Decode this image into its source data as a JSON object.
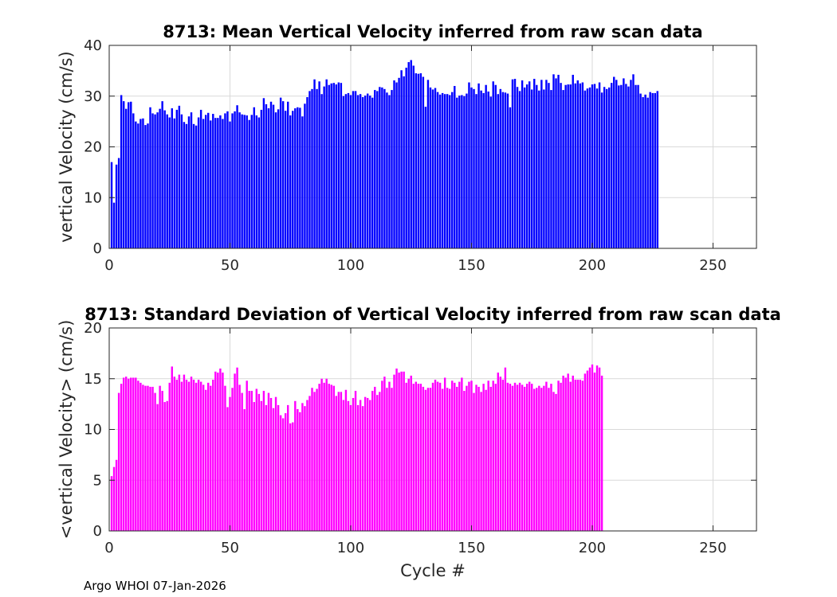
{
  "footer_text": "Argo WHOI 07-Jan-2026",
  "chart_data": [
    {
      "type": "bar",
      "title": "8713: Mean Vertical Velocity inferred from raw scan data",
      "xlabel": "",
      "ylabel": "vertical Velocity (cm/s)",
      "xlim": [
        0,
        268
      ],
      "ylim": [
        0,
        40
      ],
      "xticks": [
        0,
        50,
        100,
        150,
        200,
        250
      ],
      "yticks": [
        0,
        10,
        20,
        30,
        40
      ],
      "grid": true,
      "color": "#0000ff",
      "values": [
        17,
        9,
        16.5,
        17.8,
        30.2,
        29,
        27.5,
        28.8,
        28.9,
        26.6,
        25,
        24.6,
        25.5,
        25.6,
        24.3,
        24.6,
        27.8,
        26.6,
        26.4,
        26.8,
        27.5,
        29,
        27.2,
        26.4,
        25.8,
        27.6,
        25.6,
        27.3,
        28.1,
        26.4,
        24.9,
        24.5,
        26,
        26.8,
        24.5,
        24.2,
        25.8,
        27.3,
        25.5,
        26.3,
        26.7,
        25.2,
        26.5,
        25.7,
        25.7,
        26.2,
        25.5,
        26.6,
        27,
        25,
        26.6,
        27,
        28.2,
        26.8,
        26.4,
        26.3,
        26.2,
        25.3,
        26.3,
        27.8,
        26.2,
        25.8,
        27.3,
        29.6,
        28.4,
        27.6,
        28.9,
        28.3,
        26.8,
        27.4,
        29.7,
        29,
        27.1,
        28.9,
        26.2,
        27.1,
        27.6,
        27.8,
        27.7,
        26,
        28.5,
        29.8,
        31,
        31.4,
        33.3,
        31.4,
        32.9,
        30.4,
        31.9,
        33.3,
        32.2,
        32.5,
        32.6,
        32.3,
        32.7,
        32.6,
        30,
        30.4,
        30.6,
        30.2,
        31,
        31,
        30.2,
        30.4,
        29.8,
        30.1,
        30.5,
        30.1,
        29.7,
        31.2,
        31,
        31.8,
        31.7,
        31.4,
        30.7,
        30.2,
        31.2,
        33.1,
        32.7,
        33.6,
        35.1,
        33.9,
        35.6,
        36.7,
        37.1,
        36,
        34.5,
        34.4,
        34.5,
        33.8,
        27.9,
        33.2,
        31.7,
        31.3,
        31.6,
        30.8,
        30.3,
        30.6,
        30.4,
        30.4,
        30.2,
        30.8,
        32,
        29.7,
        30.1,
        30.2,
        30,
        30.5,
        32.7,
        31.7,
        31.4,
        30.4,
        32.5,
        31.1,
        30.6,
        32.2,
        30.9,
        29.9,
        32.9,
        32.2,
        30.4,
        31.4,
        30.8,
        30.7,
        30.5,
        27.8,
        33.3,
        33.4,
        31.8,
        31,
        33.1,
        31.7,
        32.3,
        32.9,
        31.3,
        33.4,
        32.2,
        31.1,
        33.2,
        31.3,
        33.2,
        32.6,
        31.2,
        34.3,
        33.5,
        34.2,
        32.6,
        31.2,
        32.2,
        32.3,
        32.3,
        34.2,
        32.5,
        33.1,
        32.5,
        32.7,
        31.1,
        31.5,
        31.7,
        32.3,
        32.4,
        31.5,
        32.7,
        30.7,
        31.8,
        31.4,
        31.7,
        32.6,
        33.8,
        33.2,
        32.1,
        32.2,
        33.5,
        32.4,
        31.9,
        33.2,
        34.3,
        32.2,
        32.2,
        30.5,
        29.8,
        30.3,
        29.7,
        30.8,
        30.6,
        30.6,
        31
      ]
    },
    {
      "type": "bar",
      "title": "8713: Standard Deviation of Vertical Velocity inferred from raw scan data",
      "xlabel": "Cycle #",
      "ylabel": "<vertical Velocity> (cm/s)",
      "xlim": [
        0,
        268
      ],
      "ylim": [
        0,
        20
      ],
      "xticks": [
        0,
        50,
        100,
        150,
        200,
        250
      ],
      "yticks": [
        0,
        5,
        10,
        15,
        20
      ],
      "grid": true,
      "color": "#ff00ff",
      "values": [
        5.4,
        6.3,
        7,
        13.6,
        14.5,
        15.1,
        15.2,
        15,
        15.1,
        15.1,
        15.1,
        14.8,
        14.6,
        14.4,
        14.3,
        14.3,
        14.2,
        14.2,
        13.6,
        12.5,
        14.3,
        13.8,
        12.7,
        12.8,
        14.6,
        16.2,
        15.2,
        14.9,
        15.4,
        14.7,
        15.4,
        14.9,
        14.7,
        15.2,
        14.9,
        14.6,
        14.9,
        14.7,
        14.4,
        13.9,
        14.6,
        14.3,
        14.9,
        15.7,
        15.6,
        16,
        15.6,
        14.3,
        12.2,
        13.2,
        14.1,
        15.5,
        16.1,
        14.4,
        13.6,
        12,
        14.8,
        13.8,
        13.8,
        12.7,
        14,
        13.5,
        12.8,
        13.8,
        12.4,
        13.6,
        13.1,
        12.1,
        13.2,
        12.4,
        11.4,
        11.1,
        11.6,
        12.4,
        10.6,
        10.7,
        12.8,
        12,
        11.7,
        12.6,
        12.3,
        12.9,
        13.3,
        14.1,
        13.7,
        14,
        14.5,
        15,
        14.6,
        15,
        14.5,
        14.4,
        14.3,
        13.3,
        13.7,
        13.7,
        12.9,
        13.9,
        12.8,
        12.4,
        13.1,
        13.8,
        12.4,
        12.9,
        12.3,
        13.2,
        13.1,
        12.9,
        13.8,
        14.2,
        13.4,
        13.7,
        14.8,
        15.2,
        14.1,
        14.7,
        14.1,
        15.4,
        16,
        15.6,
        15.7,
        15.7,
        14.6,
        15,
        15.3,
        14.5,
        14.7,
        14.5,
        14.5,
        14.2,
        13.9,
        14.1,
        14.1,
        14.6,
        14.9,
        14.7,
        14.6,
        14,
        15.1,
        14.1,
        14,
        14.8,
        14.6,
        14.2,
        14.7,
        15.1,
        13.8,
        14.3,
        14.7,
        14.8,
        13.6,
        14.4,
        14.2,
        13.7,
        14.5,
        13.9,
        14.8,
        14.2,
        14.8,
        14.5,
        15.6,
        15.2,
        14.9,
        16.1,
        14.6,
        14.5,
        14.3,
        14.6,
        14.4,
        14.6,
        14.4,
        14.2,
        14.5,
        14.7,
        14.5,
        14,
        14.1,
        14.3,
        14.1,
        14.3,
        14.7,
        14.1,
        14.5,
        13.7,
        13.5,
        14.8,
        14.6,
        15.3,
        15.1,
        15.5,
        14.7,
        15.3,
        14.9,
        14.9,
        14.9,
        14.8,
        15.5,
        15.8,
        16.1,
        16.4,
        15.6,
        16.3,
        16.1,
        15.3
      ]
    }
  ]
}
